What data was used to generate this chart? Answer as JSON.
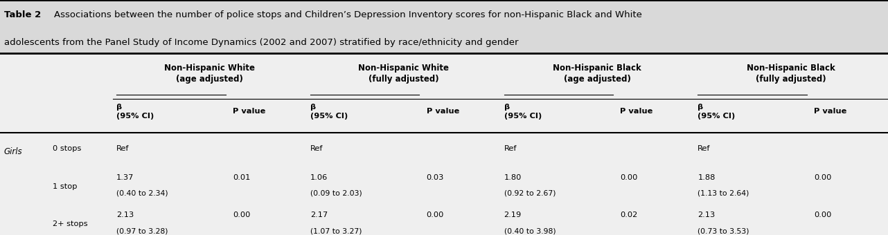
{
  "title_bold": "Table 2",
  "title_text": "  Associations between the number of police stops and Children’s Depression Inventory scores for non-Hispanic Black and White\nadolescents from the Panel Study of Income Dynamics (2002 and 2007) stratified by race/ethnicity and gender",
  "header_bg": "#d9d9d9",
  "body_bg": "#efefef",
  "col_groups": [
    "Non-Hispanic White\n(age adjusted)",
    "Non-Hispanic White\n(fully adjusted)",
    "Non-Hispanic Black\n(age adjusted)",
    "Non-Hispanic Black\n(fully adjusted)"
  ],
  "sub_headers": [
    [
      "β\n(95% CI)",
      "P value"
    ],
    [
      "β\n(95% CI)",
      "P value"
    ],
    [
      "β\n(95% CI)",
      "P value"
    ],
    [
      "β\n(95% CI)",
      "P value"
    ]
  ],
  "row_group": "Girls",
  "rows": [
    {
      "label": "0 stops",
      "cells": [
        [
          "Ref",
          ""
        ],
        [
          "Ref",
          ""
        ],
        [
          "Ref",
          ""
        ],
        [
          "Ref",
          ""
        ]
      ]
    },
    {
      "label": "1 stop",
      "cells": [
        [
          "1.37\n(0.40 to 2.34)",
          "0.01"
        ],
        [
          "1.06\n(0.09 to 2.03)",
          "0.03"
        ],
        [
          "1.80\n(0.92 to 2.67)",
          "0.00"
        ],
        [
          "1.88\n(1.13 to 2.64)",
          "0.00"
        ]
      ]
    },
    {
      "label": "2+ stops",
      "cells": [
        [
          "2.13\n(0.97 to 3.28)",
          "0.00"
        ],
        [
          "2.17\n(1.07 to 3.27)",
          "0.00"
        ],
        [
          "2.19\n(0.40 to 3.98)",
          "0.02"
        ],
        [
          "2.13\n(0.73 to 3.53)",
          "0.00"
        ]
      ]
    }
  ]
}
